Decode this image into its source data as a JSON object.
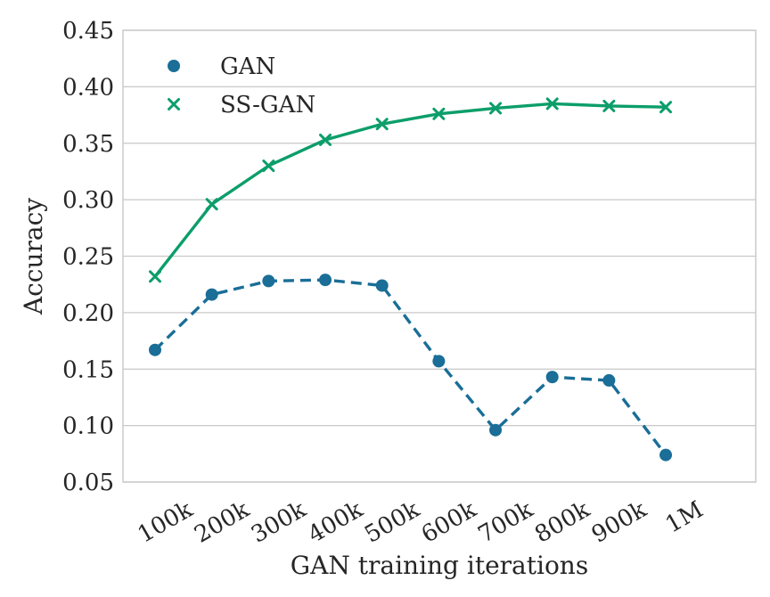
{
  "chart_data": {
    "type": "line",
    "title": "",
    "xlabel": "GAN training iterations",
    "ylabel": "Accuracy",
    "categories": [
      "100k",
      "200k",
      "300k",
      "400k",
      "500k",
      "600k",
      "700k",
      "800k",
      "900k",
      "1M"
    ],
    "y_ticks": [
      "0.05",
      "0.10",
      "0.15",
      "0.20",
      "0.25",
      "0.30",
      "0.35",
      "0.40",
      "0.45"
    ],
    "ylim": [
      0.05,
      0.45
    ],
    "grid": true,
    "legend_position": "top-left",
    "series": [
      {
        "name": "GAN",
        "values": [
          0.167,
          0.216,
          0.228,
          0.229,
          0.224,
          0.157,
          0.096,
          0.143,
          0.14,
          0.074
        ],
        "color": "#1a6e97",
        "marker": "circle",
        "line_style": "dashed"
      },
      {
        "name": "SS-GAN",
        "values": [
          0.232,
          0.296,
          0.33,
          0.353,
          0.367,
          0.376,
          0.381,
          0.385,
          0.383,
          0.382
        ],
        "color": "#0c9e6a",
        "marker": "x",
        "line_style": "solid"
      }
    ]
  }
}
